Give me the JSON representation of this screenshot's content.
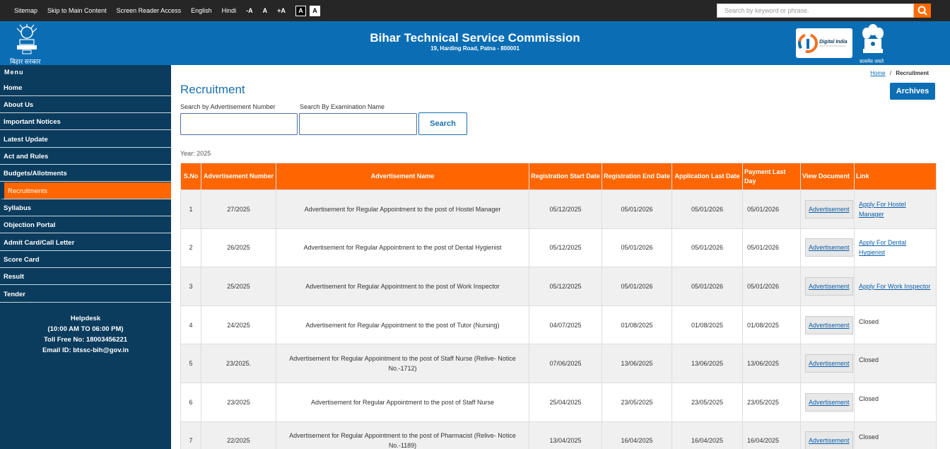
{
  "topbar": {
    "links": [
      "Sitemap",
      "Skip to Main Content",
      "Screen Reader Access",
      "English",
      "Hindi"
    ],
    "font_sizes": [
      "-A",
      "A",
      "+A"
    ],
    "contrast": [
      "A",
      "A"
    ],
    "search_placeholder": "Search by keyword or phrase."
  },
  "header": {
    "bihar_label": "बिहार सरकार",
    "title": "Bihar Technical Service Commission",
    "address": "19, Harding Road, Patna - 800001",
    "digital_india": "Digital India",
    "emblem_label": "सत्यमेव जयते"
  },
  "sidebar": {
    "menu_title": "Menu",
    "items": [
      "Home",
      "About Us",
      "Important Notices",
      "Latest Update",
      "Act and Rules",
      "Budgets/Allotments",
      "Recruitments",
      "Syllabus",
      "Objection Portal",
      "Admit Card/Call Letter",
      "Score Card",
      "Result",
      "Tender"
    ],
    "active_item": "Recruitments",
    "helpdesk": {
      "title": "Helpdesk",
      "hours": "(10:00 AM TO 06:00 PM)",
      "toll_free": "Toll Free No: 18003456221",
      "email": "Email ID: btssc-bih@gov.in"
    }
  },
  "main": {
    "breadcrumb_home": "Home",
    "breadcrumb_sep": "/",
    "breadcrumb_current": "Recruitment",
    "archives_label": "Archives",
    "page_title": "Recruitment",
    "search_adv_label": "Search by Advertisement Number",
    "search_exam_label": "Search By Examination Name",
    "search_button": "Search",
    "year": "Year: 2025",
    "table": {
      "headers": [
        "S.No",
        "Advertisement Number",
        "Advertisement Name",
        "Registration Start Date",
        "Registration End Date",
        "Application Last Date",
        "Payment Last Day",
        "View Document",
        "Link"
      ],
      "rows": [
        {
          "sno": "1",
          "adv_no": "27/2025",
          "name": "Advertisement for Regular Appointment to the post of Hostel Manager",
          "reg_start": "05/12/2025",
          "reg_end": "05/01/2026",
          "app_last": "05/01/2026",
          "pay_last": "05/01/2026",
          "doc": "Advertisement",
          "link": "Apply For Hostel Manager"
        },
        {
          "sno": "2",
          "adv_no": "26/2025",
          "name": "Advertisement for Regular Appointment to the post of Dental Hygienist",
          "reg_start": "05/12/2025",
          "reg_end": "05/01/2026",
          "app_last": "05/01/2026",
          "pay_last": "05/01/2026",
          "doc": "Advertisement",
          "link": "Apply For Dental Hygienist"
        },
        {
          "sno": "3",
          "adv_no": "25/2025",
          "name": "Advertisement for Regular Appointment to the post of Work Inspector",
          "reg_start": "05/12/2025",
          "reg_end": "05/01/2026",
          "app_last": "05/01/2026",
          "pay_last": "05/01/2026",
          "doc": "Advertisement",
          "link": "Apply For Work Inspector"
        },
        {
          "sno": "4",
          "adv_no": "24/2025",
          "name": "Advertisement for Regular Appointment to the post of Tutor (Nursing)",
          "reg_start": "04/07/2025",
          "reg_end": "01/08/2025",
          "app_last": "01/08/2025",
          "pay_last": "01/08/2025",
          "doc": "Advertisement",
          "link": "Closed"
        },
        {
          "sno": "5",
          "adv_no": "23/2025.",
          "name": "Advertisement for Regular Appointment to the post of Staff Nurse (Relive- Notice No.-1712)",
          "reg_start": "07/06/2025",
          "reg_end": "13/06/2025",
          "app_last": "13/06/2025",
          "pay_last": "13/06/2025",
          "doc": "Advertisement",
          "link": "Closed"
        },
        {
          "sno": "6",
          "adv_no": "23/2025",
          "name": "Advertisement for Regular Appointment to the post of Staff Nurse",
          "reg_start": "25/04/2025",
          "reg_end": "23/05/2025",
          "app_last": "23/05/2025",
          "pay_last": "23/05/2025",
          "doc": "Advertisement",
          "link": "Closed"
        },
        {
          "sno": "7",
          "adv_no": "22/2025",
          "name": "Advertisement for Regular Appointment to the post of Pharmacist (Relive- Notice No.-1189)",
          "reg_start": "13/04/2025",
          "reg_end": "16/04/2025",
          "app_last": "16/04/2025",
          "pay_last": "16/04/2025",
          "doc": "Advertisement",
          "link": "Closed"
        }
      ]
    }
  },
  "colors": {
    "topbar": "#262626",
    "header": "#0b6eb4",
    "sidebar": "#0b3c5d",
    "accent": "#ff6600"
  },
  "icons": [
    "search-icon",
    "bihar-logo-icon",
    "digital-india-logo-icon",
    "emblem-icon"
  ]
}
